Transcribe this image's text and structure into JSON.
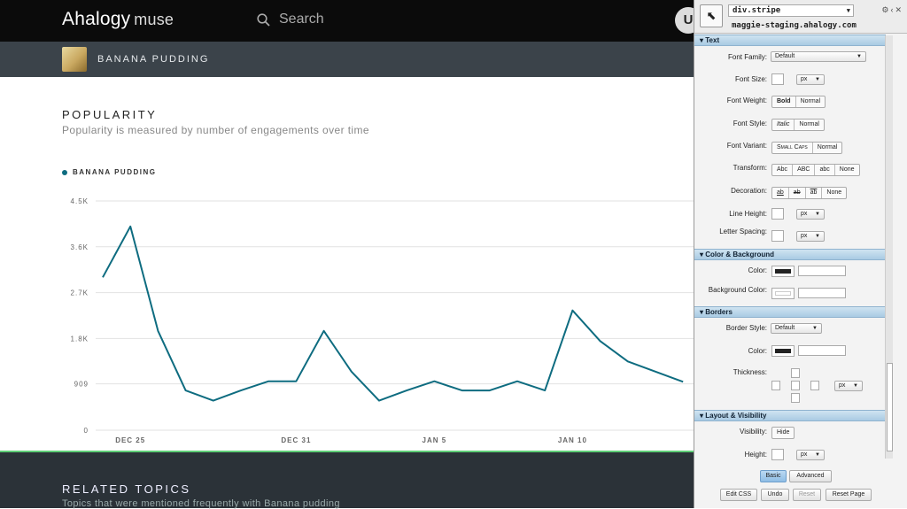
{
  "header": {
    "logo": "Ahalogy",
    "logo_sub": "muse",
    "search_placeholder": "Search",
    "user_initial": "U"
  },
  "topic": {
    "title": "BANANA PUDDING"
  },
  "popularity": {
    "title": "POPULARITY",
    "subtitle": "Popularity is measured by number of engagements over time"
  },
  "chart_data": {
    "type": "line",
    "series": [
      {
        "name": "BANANA PUDDING",
        "color": "#0e6c80",
        "values": [
          3000,
          4000,
          1950,
          780,
          580,
          780,
          960,
          960,
          1950,
          1150,
          580,
          780,
          960,
          780,
          780,
          960,
          780,
          2350,
          1750,
          1350,
          1150,
          950
        ]
      }
    ],
    "x_tick_labels": [
      "DEC 25",
      "DEC 31",
      "JAN 5",
      "JAN 10"
    ],
    "x_tick_index": [
      1,
      7,
      12,
      17
    ],
    "y_tick_labels": [
      "4.5K",
      "3.6K",
      "2.7K",
      "1.8K",
      "909",
      "0"
    ],
    "y_tick_values": [
      4500,
      3600,
      2700,
      1800,
      909,
      0
    ],
    "ylim": [
      0,
      4500
    ],
    "grid": true,
    "legend": "top-left"
  },
  "related": {
    "title": "RELATED TOPICS",
    "subtitle": "Topics that were mentioned frequently with Banana pudding"
  },
  "inspector": {
    "selector": "div.stripe",
    "host": "maggie-staging.ahalogy.com",
    "sections": {
      "text": "Text",
      "color": "Color & Background",
      "borders": "Borders",
      "layout": "Layout & Visibility"
    },
    "labels": {
      "font_family": "Font Family:",
      "font_size": "Font Size:",
      "font_weight": "Font Weight:",
      "font_style": "Font Style:",
      "font_variant": "Font Variant:",
      "transform": "Transform:",
      "decoration": "Decoration:",
      "line_height": "Line Height:",
      "letter_spacing": "Letter Spacing:",
      "color": "Color:",
      "bg_color": "Background Color:",
      "border_style": "Border Style:",
      "border_color": "Color:",
      "thickness": "Thickness:",
      "visibility": "Visibility:",
      "height": "Height:"
    },
    "values": {
      "font_family": "Default",
      "unit": "px",
      "border_style": "Default"
    },
    "buttons": {
      "bold": "Bold",
      "normal": "Normal",
      "italic": "Italic",
      "small_caps": "Small Caps",
      "abc1": "Abc",
      "abc2": "ABC",
      "abc3": "abc",
      "none": "None",
      "ab": "ab",
      "hide": "Hide",
      "basic": "Basic",
      "advanced": "Advanced",
      "edit_css": "Edit CSS",
      "undo": "Undo",
      "reset": "Reset",
      "reset_page": "Reset Page"
    },
    "colors": {
      "text_swatch": "#222222",
      "bg_swatch": "#ffffff"
    }
  }
}
